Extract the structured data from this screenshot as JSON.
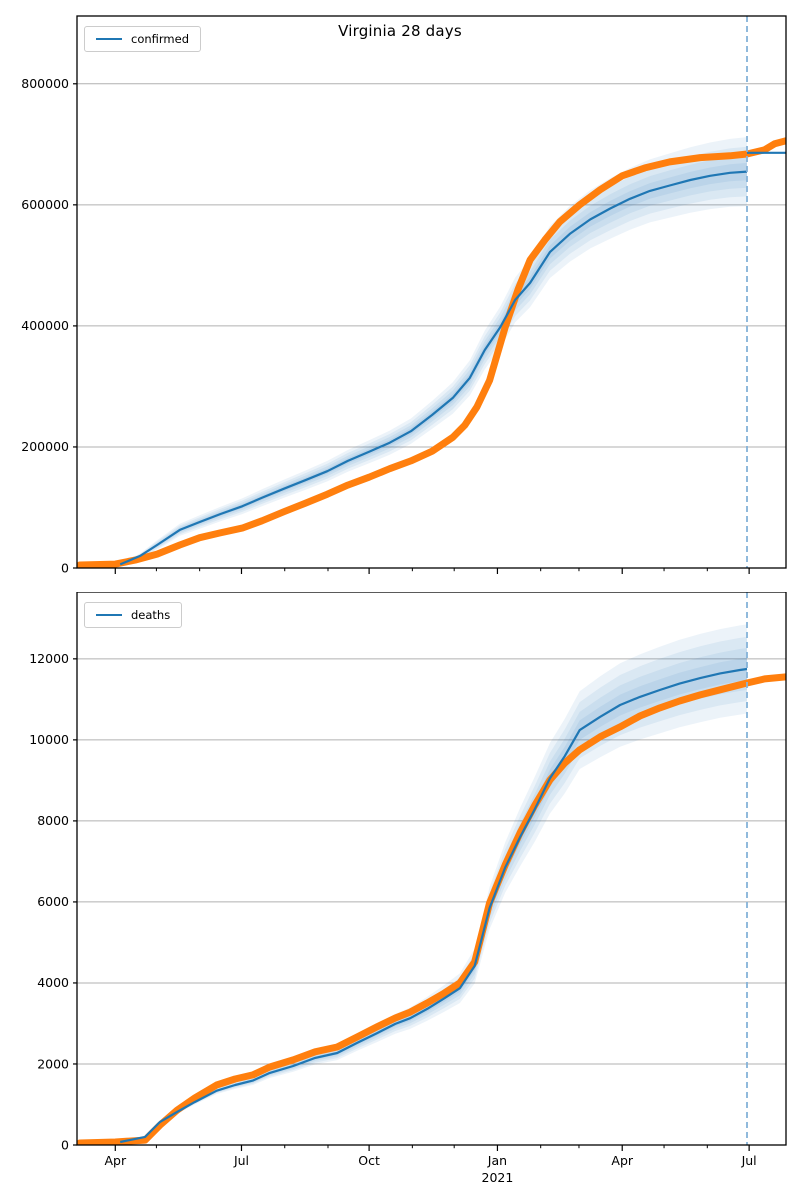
{
  "title": "Virginia 28 days",
  "colors": {
    "actual": "#ff7f0e",
    "fit": "#1f77b4",
    "band": "#1f77b4",
    "forecast_line": "#85b3d9",
    "grid": "#b0b0b0",
    "axis": "#000000",
    "text": "#000000"
  },
  "xaxis": {
    "start_date": "2020-03-05",
    "end_date": "2021-07-28",
    "forecast_start_frac": 0.945,
    "year_label": "2021",
    "ticks": [
      {
        "f": 0.054,
        "label": "Apr"
      },
      {
        "f": 0.112
      },
      {
        "f": 0.173
      },
      {
        "f": 0.232,
        "label": "Jul"
      },
      {
        "f": 0.293
      },
      {
        "f": 0.354
      },
      {
        "f": 0.412,
        "label": "Oct"
      },
      {
        "f": 0.473
      },
      {
        "f": 0.532
      },
      {
        "f": 0.593,
        "label": "Jan",
        "year": true
      },
      {
        "f": 0.654
      },
      {
        "f": 0.708
      },
      {
        "f": 0.769,
        "label": "Apr"
      },
      {
        "f": 0.828
      },
      {
        "f": 0.889
      },
      {
        "f": 0.948,
        "label": "Jul"
      }
    ]
  },
  "chart_data": [
    {
      "type": "line",
      "id": "confirmed",
      "legend_label": "confirmed",
      "ylabel": "",
      "ylim": [
        0,
        912000
      ],
      "grid": "horizontal",
      "legend_position": "upper-left",
      "yticks": [
        {
          "v": 0,
          "label": "0"
        },
        {
          "v": 200000,
          "label": "200000"
        },
        {
          "v": 400000,
          "label": "400000"
        },
        {
          "v": 600000,
          "label": "600000"
        },
        {
          "v": 800000,
          "label": "800000"
        }
      ],
      "series": [
        {
          "name": "actual",
          "role": "observed-data",
          "points": [
            [
              0.004,
              5000
            ],
            [
              0.054,
              6500
            ],
            [
              0.082,
              13000
            ],
            [
              0.113,
              23000
            ],
            [
              0.145,
              38000
            ],
            [
              0.173,
              50000
            ],
            [
              0.202,
              58000
            ],
            [
              0.233,
              66000
            ],
            [
              0.261,
              78000
            ],
            [
              0.292,
              93000
            ],
            [
              0.322,
              107000
            ],
            [
              0.353,
              122000
            ],
            [
              0.382,
              137000
            ],
            [
              0.412,
              150000
            ],
            [
              0.441,
              164000
            ],
            [
              0.471,
              177000
            ],
            [
              0.501,
              193000
            ],
            [
              0.53,
              216000
            ],
            [
              0.547,
              236000
            ],
            [
              0.564,
              266000
            ],
            [
              0.582,
              310000
            ],
            [
              0.604,
              398000
            ],
            [
              0.622,
              460000
            ],
            [
              0.639,
              509000
            ],
            [
              0.66,
              542000
            ],
            [
              0.681,
              572000
            ],
            [
              0.709,
              600000
            ],
            [
              0.738,
              625000
            ],
            [
              0.769,
              648000
            ],
            [
              0.801,
              661000
            ],
            [
              0.836,
              671000
            ],
            [
              0.879,
              678000
            ],
            [
              0.921,
              681000
            ],
            [
              0.945,
              684000
            ],
            [
              0.97,
              691000
            ],
            [
              0.984,
              701000
            ],
            [
              1.0,
              706000
            ]
          ]
        },
        {
          "name": "fit",
          "role": "model-prediction",
          "points": [
            [
              0.061,
              6000
            ],
            [
              0.089,
              20000
            ],
            [
              0.113,
              38000
            ],
            [
              0.145,
              63000
            ],
            [
              0.173,
              76000
            ],
            [
              0.202,
              89000
            ],
            [
              0.233,
              102000
            ],
            [
              0.261,
              116000
            ],
            [
              0.292,
              131000
            ],
            [
              0.322,
              145000
            ],
            [
              0.353,
              160000
            ],
            [
              0.382,
              177000
            ],
            [
              0.412,
              192000
            ],
            [
              0.441,
              207000
            ],
            [
              0.471,
              226000
            ],
            [
              0.501,
              253000
            ],
            [
              0.53,
              281000
            ],
            [
              0.554,
              314000
            ],
            [
              0.575,
              360000
            ],
            [
              0.597,
              398000
            ],
            [
              0.618,
              443000
            ],
            [
              0.639,
              471000
            ],
            [
              0.667,
              522000
            ],
            [
              0.695,
              552000
            ],
            [
              0.724,
              576000
            ],
            [
              0.752,
              594000
            ],
            [
              0.78,
              610000
            ],
            [
              0.808,
              623000
            ],
            [
              0.836,
              632000
            ],
            [
              0.865,
              641000
            ],
            [
              0.893,
              648000
            ],
            [
              0.921,
              653000
            ],
            [
              0.945,
              655000
            ]
          ],
          "band_halfwidth": [
            2000,
            4000,
            8000,
            10000,
            11000,
            12000,
            13000,
            14000,
            15000,
            16000,
            17000,
            18000,
            19000,
            20000,
            21000,
            23000,
            26000,
            29000,
            32000,
            34000,
            37000,
            40000,
            43000,
            46000,
            48000,
            50000,
            51000,
            52000,
            53000,
            54000,
            55000,
            56000,
            57000
          ]
        },
        {
          "name": "fit_extension",
          "role": "post-forecast-level",
          "points": [
            [
              0.945,
              686000
            ],
            [
              1.0,
              686000
            ]
          ]
        }
      ]
    },
    {
      "type": "line",
      "id": "deaths",
      "legend_label": "deaths",
      "ylabel": "",
      "ylim": [
        0,
        13650
      ],
      "grid": "horizontal",
      "legend_position": "upper-left",
      "yticks": [
        {
          "v": 0,
          "label": "0"
        },
        {
          "v": 2000,
          "label": "2000"
        },
        {
          "v": 4000,
          "label": "4000"
        },
        {
          "v": 6000,
          "label": "6000"
        },
        {
          "v": 8000,
          "label": "8000"
        },
        {
          "v": 10000,
          "label": "10000"
        },
        {
          "v": 12000,
          "label": "12000"
        }
      ],
      "series": [
        {
          "name": "actual",
          "role": "observed-data",
          "points": [
            [
              0.004,
              50
            ],
            [
              0.054,
              75
            ],
            [
              0.096,
              120
            ],
            [
              0.117,
              490
            ],
            [
              0.141,
              860
            ],
            [
              0.166,
              1160
            ],
            [
              0.197,
              1480
            ],
            [
              0.223,
              1630
            ],
            [
              0.248,
              1730
            ],
            [
              0.272,
              1925
            ],
            [
              0.305,
              2100
            ],
            [
              0.336,
              2300
            ],
            [
              0.367,
              2420
            ],
            [
              0.395,
              2665
            ],
            [
              0.423,
              2915
            ],
            [
              0.449,
              3135
            ],
            [
              0.47,
              3280
            ],
            [
              0.494,
              3505
            ],
            [
              0.518,
              3750
            ],
            [
              0.54,
              4000
            ],
            [
              0.561,
              4520
            ],
            [
              0.582,
              5975
            ],
            [
              0.604,
              6915
            ],
            [
              0.625,
              7705
            ],
            [
              0.646,
              8395
            ],
            [
              0.667,
              9010
            ],
            [
              0.688,
              9430
            ],
            [
              0.709,
              9755
            ],
            [
              0.738,
              10075
            ],
            [
              0.766,
              10320
            ],
            [
              0.794,
              10590
            ],
            [
              0.822,
              10790
            ],
            [
              0.85,
              10960
            ],
            [
              0.879,
              11110
            ],
            [
              0.907,
              11235
            ],
            [
              0.935,
              11360
            ],
            [
              0.945,
              11405
            ],
            [
              0.97,
              11505
            ],
            [
              1.0,
              11555
            ]
          ]
        },
        {
          "name": "fit",
          "role": "model-prediction",
          "points": [
            [
              0.061,
              75
            ],
            [
              0.096,
              200
            ],
            [
              0.117,
              570
            ],
            [
              0.141,
              815
            ],
            [
              0.166,
              1060
            ],
            [
              0.197,
              1340
            ],
            [
              0.223,
              1480
            ],
            [
              0.248,
              1590
            ],
            [
              0.272,
              1780
            ],
            [
              0.305,
              1950
            ],
            [
              0.336,
              2150
            ],
            [
              0.367,
              2270
            ],
            [
              0.395,
              2520
            ],
            [
              0.423,
              2760
            ],
            [
              0.449,
              2990
            ],
            [
              0.47,
              3130
            ],
            [
              0.494,
              3360
            ],
            [
              0.518,
              3620
            ],
            [
              0.54,
              3870
            ],
            [
              0.561,
              4420
            ],
            [
              0.582,
              5850
            ],
            [
              0.604,
              6850
            ],
            [
              0.625,
              7600
            ],
            [
              0.646,
              8300
            ],
            [
              0.667,
              9050
            ],
            [
              0.688,
              9600
            ],
            [
              0.709,
              10240
            ],
            [
              0.738,
              10570
            ],
            [
              0.766,
              10860
            ],
            [
              0.794,
              11060
            ],
            [
              0.822,
              11230
            ],
            [
              0.85,
              11390
            ],
            [
              0.879,
              11525
            ],
            [
              0.907,
              11640
            ],
            [
              0.935,
              11725
            ],
            [
              0.945,
              11750
            ]
          ],
          "band_halfwidth": [
            20,
            30,
            40,
            50,
            60,
            80,
            95,
            110,
            125,
            140,
            160,
            175,
            195,
            220,
            245,
            265,
            295,
            330,
            365,
            430,
            520,
            620,
            720,
            800,
            870,
            920,
            960,
            1000,
            1030,
            1050,
            1070,
            1080,
            1090,
            1095,
            1100,
            1100
          ]
        }
      ]
    }
  ]
}
